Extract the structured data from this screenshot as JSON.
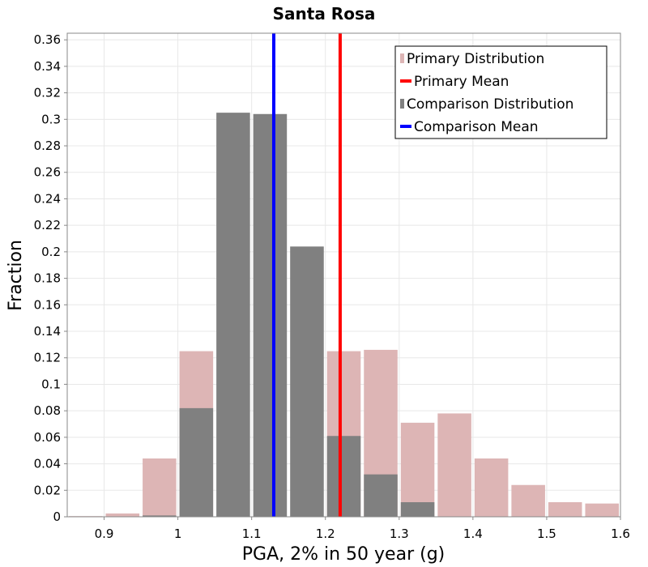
{
  "chart_data": {
    "type": "bar",
    "title": "Santa Rosa",
    "xlabel": "PGA, 2% in 50 year (g)",
    "ylabel": "Fraction",
    "xlim": [
      0.85,
      1.6
    ],
    "ylim": [
      0,
      0.365
    ],
    "x_ticks": [
      0.9,
      1,
      1.1,
      1.2,
      1.3,
      1.4,
      1.5,
      1.6
    ],
    "y_ticks": [
      0,
      0.02,
      0.04,
      0.06,
      0.08,
      0.1,
      0.12,
      0.14,
      0.16,
      0.18,
      0.2,
      0.22,
      0.24,
      0.26,
      0.28,
      0.3,
      0.32,
      0.34,
      0.36
    ],
    "bin_width": 0.05,
    "grid": true,
    "legend_position": "top-right",
    "series": [
      {
        "name": "Primary Distribution",
        "kind": "histogram",
        "color": "#ddb5b5",
        "bin_centers": [
          0.875,
          0.925,
          0.975,
          1.025,
          1.075,
          1.125,
          1.175,
          1.225,
          1.275,
          1.325,
          1.375,
          1.425,
          1.475,
          1.525,
          1.575
        ],
        "values": [
          0.0005,
          0.0025,
          0.044,
          0.125,
          0.0,
          0.0,
          0.0,
          0.125,
          0.126,
          0.071,
          0.078,
          0.044,
          0.024,
          0.011,
          0.01
        ]
      },
      {
        "name": "Primary Mean",
        "kind": "vline",
        "color": "#ff0000",
        "x": 1.22
      },
      {
        "name": "Comparison Distribution",
        "kind": "histogram",
        "color": "#808080",
        "bin_centers": [
          0.975,
          1.025,
          1.075,
          1.125,
          1.175,
          1.225,
          1.275,
          1.325
        ],
        "values": [
          0.001,
          0.082,
          0.305,
          0.304,
          0.204,
          0.061,
          0.032,
          0.011
        ]
      },
      {
        "name": "Comparison Mean",
        "kind": "vline",
        "color": "#0000ff",
        "x": 1.13
      }
    ]
  }
}
